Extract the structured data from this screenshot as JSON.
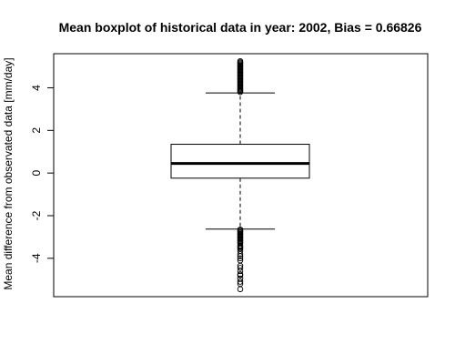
{
  "chart_data": {
    "type": "boxplot",
    "title": "Mean boxplot of historical data in year: 2002, Bias = 0.66826",
    "xlabel": "",
    "ylabel": "Mean difference from observated data [mm/day]",
    "ylim": [
      -5.8,
      5.6
    ],
    "yticks": [
      -4,
      -2,
      0,
      2,
      4
    ],
    "grid": false,
    "box": {
      "lower_whisker": -2.63,
      "q1": -0.24,
      "median": 0.45,
      "q3": 1.35,
      "upper_whisker": 3.76
    },
    "outliers_high": [
      3.8,
      3.85,
      3.9,
      3.95,
      4.0,
      4.05,
      4.1,
      4.15,
      4.2,
      4.25,
      4.3,
      4.35,
      4.4,
      4.45,
      4.5,
      4.55,
      4.6,
      4.65,
      4.7,
      4.75,
      4.8,
      4.85,
      4.9,
      4.95,
      5.0,
      5.05,
      5.1,
      5.15,
      5.2,
      5.25
    ],
    "outliers_low": [
      -2.65,
      -2.7,
      -2.75,
      -2.8,
      -2.85,
      -2.9,
      -2.95,
      -3.0,
      -3.05,
      -3.1,
      -3.15,
      -3.2,
      -3.25,
      -3.3,
      -3.4,
      -3.45,
      -3.5,
      -3.55,
      -3.65,
      -3.8,
      -3.9,
      -4.0,
      -4.1,
      -4.35,
      -4.45,
      -4.6,
      -4.75,
      -4.8,
      -4.95,
      -5.1,
      -5.2,
      -5.45
    ]
  }
}
